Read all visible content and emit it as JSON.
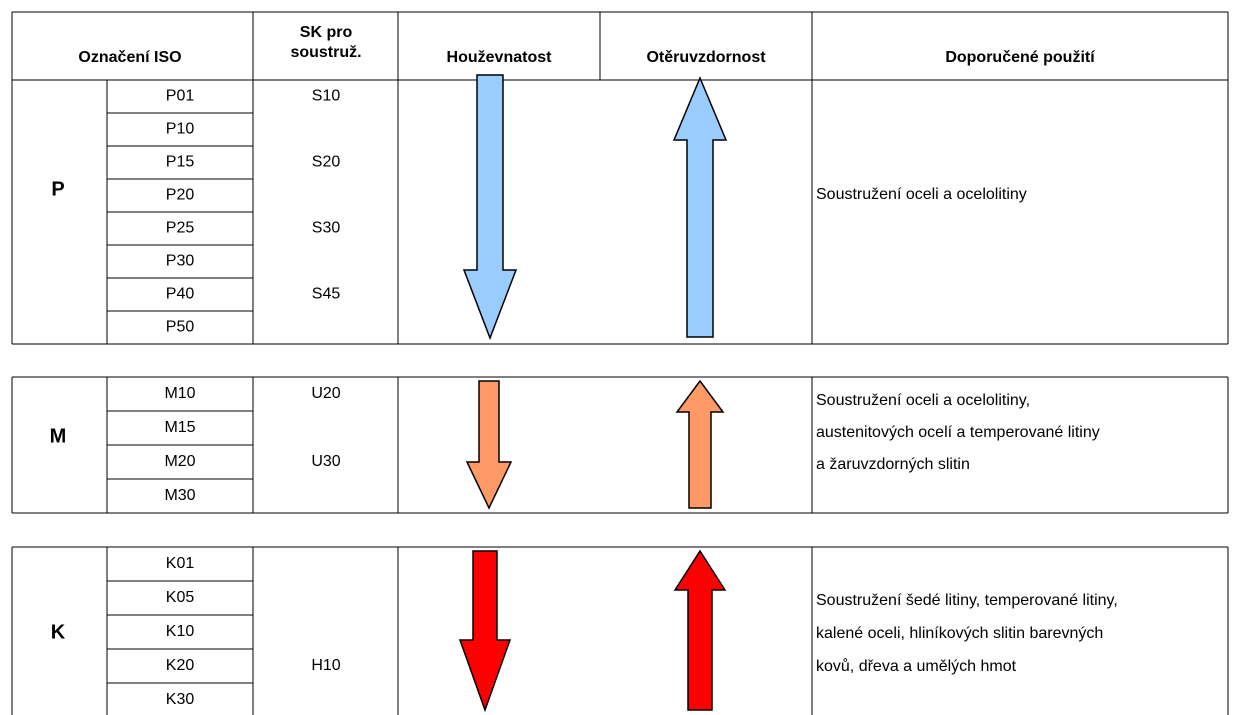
{
  "header": {
    "iso": "Označení ISO",
    "sk": [
      "SK pro",
      "soustruž."
    ],
    "toughness": "Houževnatost",
    "wear": "Otěruvzdornost",
    "usage": "Doporučené použití"
  },
  "groups": [
    {
      "letter": "P",
      "arrow_color": "#99ccff",
      "rows": [
        {
          "iso": "P01",
          "sk": "S10"
        },
        {
          "iso": "P10"
        },
        {
          "iso": "P15",
          "sk": "S20"
        },
        {
          "iso": "P20"
        },
        {
          "iso": "P25",
          "sk": "S30"
        },
        {
          "iso": "P30"
        },
        {
          "iso": "P40",
          "sk": "S45"
        },
        {
          "iso": "P50"
        }
      ],
      "description": [
        "Soustružení oceli a ocelolitiny"
      ]
    },
    {
      "letter": "M",
      "arrow_color": "#ff9966",
      "rows": [
        {
          "iso": "M10",
          "sk": "U20"
        },
        {
          "iso": "M15"
        },
        {
          "iso": "M20",
          "sk": "U30"
        },
        {
          "iso": "M30"
        }
      ],
      "description": [
        "Soustružení oceli a ocelolitiny,",
        "austenitových ocelí a temperované litiny",
        "a žaruvzdorných slitin"
      ]
    },
    {
      "letter": "K",
      "arrow_color": "#ff0000",
      "rows": [
        {
          "iso": "K01"
        },
        {
          "iso": "K05"
        },
        {
          "iso": "K10"
        },
        {
          "iso": "K20",
          "sk": "H10"
        },
        {
          "iso": "K30"
        }
      ],
      "description": [
        "Soustružení šedé litiny, temperované litiny,",
        "kalené oceli, hliníkových slitin barevných",
        "kovů, dřeva a umělých hmot"
      ]
    }
  ]
}
